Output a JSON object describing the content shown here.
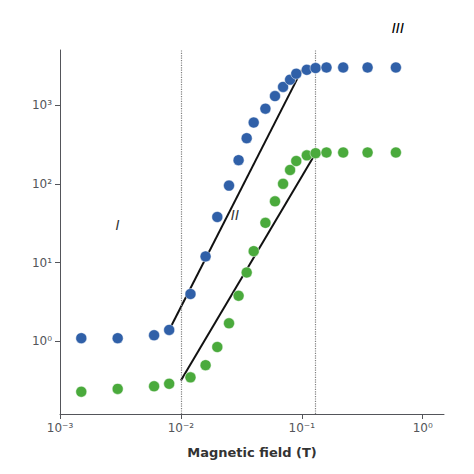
{
  "chart_data": {
    "type": "scatter",
    "xlabel": "Magnetic field (T)",
    "log": true,
    "grid": false,
    "xlim": [
      0.001,
      1.5
    ],
    "ylim": [
      0.12,
      5000
    ],
    "xticks": [
      {
        "value": 0.001,
        "label": "10⁻³"
      },
      {
        "value": 0.01,
        "label": "10⁻²"
      },
      {
        "value": 0.1,
        "label": "10⁻¹"
      },
      {
        "value": 1,
        "label": "10⁰"
      }
    ],
    "yticks": [
      {
        "value": 1,
        "label": "10⁰"
      },
      {
        "value": 10,
        "label": "10¹"
      },
      {
        "value": 100,
        "label": "10²"
      },
      {
        "value": 1000,
        "label": "10³"
      }
    ],
    "series": [
      {
        "type": "line",
        "line_style": "solid",
        "color": "#111111",
        "x": [
          0.008,
          0.1
        ],
        "values": [
          1.4,
          2800
        ]
      },
      {
        "type": "line",
        "line_style": "solid",
        "color": "#111111",
        "x": [
          0.01,
          0.13
        ],
        "values": [
          0.32,
          245
        ]
      },
      {
        "type": "scatter",
        "marker": "circle",
        "color": "#3060a8",
        "x": [
          0.0015,
          0.003,
          0.006,
          0.008,
          0.012,
          0.016,
          0.02,
          0.025,
          0.03,
          0.035,
          0.04,
          0.05,
          0.06,
          0.07,
          0.08,
          0.09,
          0.11,
          0.13,
          0.16,
          0.22,
          0.35,
          0.6
        ],
        "values": [
          1.1,
          1.1,
          1.2,
          1.4,
          4.0,
          12,
          38,
          95,
          200,
          380,
          600,
          900,
          1300,
          1700,
          2100,
          2500,
          2800,
          2950,
          3000,
          3000,
          3000,
          3000
        ]
      },
      {
        "type": "scatter",
        "marker": "circle",
        "color": "#4aaa3c",
        "x": [
          0.0015,
          0.003,
          0.006,
          0.008,
          0.012,
          0.016,
          0.02,
          0.025,
          0.03,
          0.035,
          0.04,
          0.05,
          0.06,
          0.07,
          0.08,
          0.09,
          0.11,
          0.13,
          0.16,
          0.22,
          0.35,
          0.6
        ],
        "values": [
          0.23,
          0.25,
          0.27,
          0.29,
          0.35,
          0.5,
          0.85,
          1.7,
          3.8,
          7.5,
          14,
          32,
          60,
          100,
          150,
          195,
          230,
          245,
          250,
          250,
          250,
          250
        ]
      }
    ],
    "vlines": [
      0.008,
      0.13
    ],
    "annotations": [
      {
        "text": "I",
        "x": 0.003,
        "y": 30
      },
      {
        "text": "II",
        "x": 0.028,
        "y": 40
      },
      {
        "text": "III"
      }
    ]
  }
}
